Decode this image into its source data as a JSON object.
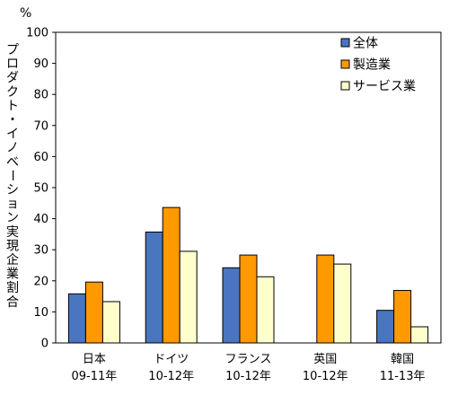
{
  "chart_data": {
    "type": "bar",
    "unit": "%",
    "ylabel": "プロダクト・イノベーション実現企業割合",
    "ylim": [
      0,
      100
    ],
    "yticks": [
      0,
      10,
      20,
      30,
      40,
      50,
      60,
      70,
      80,
      90,
      100
    ],
    "grid": false,
    "legend_position": "top-right",
    "categories": [
      {
        "name": "日本",
        "period": "09-11年"
      },
      {
        "name": "ドイツ",
        "period": "10-12年"
      },
      {
        "name": "フランス",
        "period": "10-12年"
      },
      {
        "name": "英国",
        "period": "10-12年"
      },
      {
        "name": "韓国",
        "period": "11-13年"
      }
    ],
    "series": [
      {
        "name": "全体",
        "color": "#4a76c0",
        "values": [
          15.8,
          35.7,
          24.2,
          null,
          10.5
        ]
      },
      {
        "name": "製造業",
        "color": "#ff9900",
        "values": [
          19.6,
          43.6,
          28.3,
          28.3,
          16.9
        ]
      },
      {
        "name": "サービス業",
        "color": "#ffffcc",
        "values": [
          13.3,
          29.5,
          21.3,
          25.4,
          5.2
        ]
      }
    ]
  }
}
